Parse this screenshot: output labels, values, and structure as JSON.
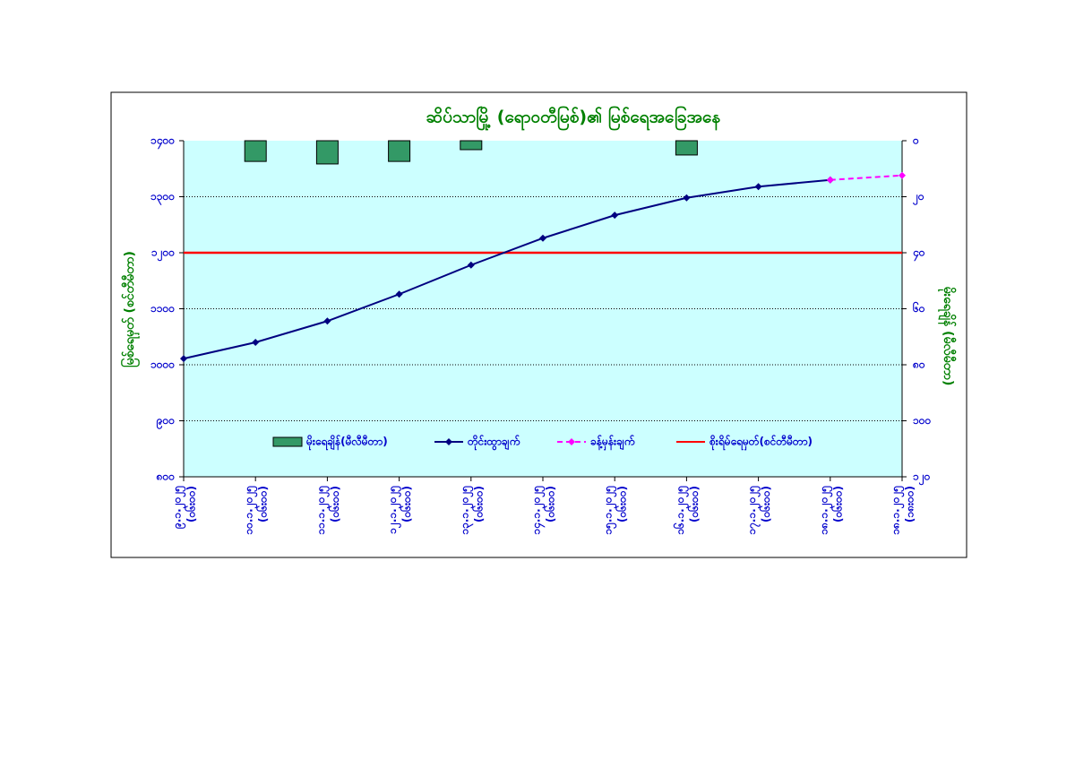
{
  "chart_data": {
    "type": "combo",
    "title": "ဆိပ်သာမြို့ (ရောဝတီမြစ်)၏ မြစ်ရေအခြေအနေ",
    "y_label": "မြစ်ရေမှတ် (စင်တီမီတာ)",
    "y2_label": "မိုးရေချိန် (မီလီမီတာ)",
    "categories": [
      "၉.၁.၂၀၂၅",
      "၁၀.၁.၂၀၂၅",
      "၁၁.၁.၂၀၂၅",
      "၁၂.၁.၂၀၂၅",
      "၁၃.၁.၂၀၂၅",
      "၁၄.၁.၂၀၂၅",
      "၁၅.၁.၂၀၂၅",
      "၁၆.၁.၂၀၂၅",
      "၁၇.၁.၂၀၂၅",
      "၁၈.၁.၂၀၂၅",
      "၁၈.၁.၂၀၂၅"
    ],
    "times": [
      "(၀၆း၀၀)",
      "(၀၆း၀၀)",
      "(၀၆း၀၀)",
      "(၀၆း၀၀)",
      "(၀၆း၀၀)",
      "(၀၆း၀၀)",
      "(၀၆း၀၀)",
      "(၀၆း၀၀)",
      "(၀၆း၀၀)",
      "(၀၆း၀၀)",
      "(၁၈း၀၀)"
    ],
    "series": [
      {
        "name": "မိုးရေချိန်(မီလီမီတာ)",
        "type": "bar",
        "axis": "y2",
        "color": "#339966",
        "values": [
          null,
          7.4,
          8.3,
          7.4,
          3.2,
          null,
          null,
          5.1,
          null,
          null,
          null
        ]
      },
      {
        "name": "တိုင်းထွာချက်",
        "type": "line",
        "color": "#000080",
        "values": [
          1011,
          1040,
          1078,
          1126,
          1178,
          1226,
          1267,
          1298,
          1318,
          1330,
          null
        ]
      },
      {
        "name": "ခန့်မှန်းချက်",
        "type": "line",
        "dashed": true,
        "color": "#ff00ff",
        "values": [
          null,
          null,
          null,
          null,
          null,
          null,
          null,
          null,
          null,
          1330,
          1338
        ]
      }
    ],
    "threshold": {
      "name": "စိုးရိမ်ရေမှတ်(စင်တီမီတာ)",
      "value": 1200,
      "color": "#ff0000"
    },
    "ylim": [
      800,
      1400
    ],
    "yticks": [
      {
        "value": 800,
        "label": "၈၀၀"
      },
      {
        "value": 900,
        "label": "၉၀၀"
      },
      {
        "value": 1000,
        "label": "၁၀၀၀"
      },
      {
        "value": 1100,
        "label": "၁၁၀၀"
      },
      {
        "value": 1200,
        "label": "၁၂၀၀"
      },
      {
        "value": 1300,
        "label": "၁၃၀၀"
      },
      {
        "value": 1400,
        "label": "၁၄၀၀"
      }
    ],
    "y2lim": [
      120,
      0
    ],
    "y2ticks": [
      {
        "value": 0,
        "label": "၀"
      },
      {
        "value": 20,
        "label": "၂၀"
      },
      {
        "value": 40,
        "label": "၄၀"
      },
      {
        "value": 60,
        "label": "၆၀"
      },
      {
        "value": 80,
        "label": "၈၀"
      },
      {
        "value": 100,
        "label": "၁၀၀"
      },
      {
        "value": 120,
        "label": "၁၂၀"
      }
    ],
    "grid": true
  }
}
